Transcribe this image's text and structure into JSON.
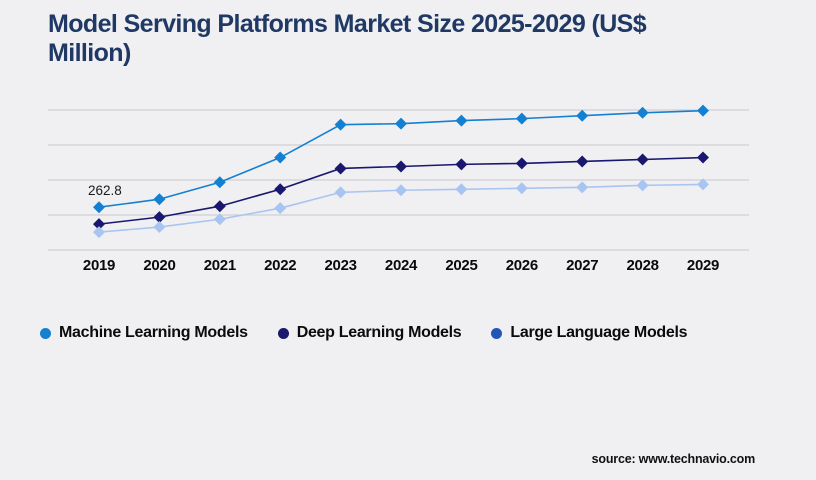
{
  "title": "Model Serving Platforms Market Size 2025-2029 (US$ Million)",
  "source": {
    "label": "source: www.technavio.com"
  },
  "colors": {
    "background": "#f0f0f3",
    "title_text": "#1f3864",
    "gridline": "#c9c9cd",
    "axis_label_text": "#0a0a0a",
    "annotation_text": "#1a1a1a"
  },
  "chart_data": {
    "type": "line",
    "title": "Model Serving Platforms Market Size 2025-2029 (US$ Million)",
    "xlabel": "",
    "ylabel": "US$ Million",
    "categories": [
      "2019",
      "2020",
      "2021",
      "2022",
      "2023",
      "2024",
      "2025",
      "2026",
      "2027",
      "2028",
      "2029"
    ],
    "series": [
      {
        "name": "Machine Learning Models",
        "color": "#1480d2",
        "legend_color": "#1480d2",
        "marker": "diamond",
        "values": [
          262.8,
          312,
          416,
          568,
          770,
          776,
          795,
          807,
          825,
          843,
          856
        ]
      },
      {
        "name": "Deep Learning Models",
        "color": "#1a176e",
        "legend_color": "#1a176e",
        "marker": "diamond",
        "values": [
          159,
          202,
          269,
          373,
          501,
          513,
          526,
          532,
          544,
          556,
          568
        ]
      },
      {
        "name": "Large Language Models",
        "color": "#a8c5f2",
        "legend_color": "#2355b4",
        "marker": "diamond",
        "values": [
          110,
          141,
          189,
          257,
          354,
          367,
          373,
          379,
          385,
          397,
          403
        ]
      }
    ],
    "annotation": {
      "text": "262.8",
      "series": "Machine Learning Models",
      "category": "2019",
      "value": 262.8
    },
    "ylim": [
      0,
      860
    ],
    "gridline_count": 5,
    "grid": "horizontal",
    "y_axis_labels_visible": false,
    "legend_position": "bottom"
  }
}
